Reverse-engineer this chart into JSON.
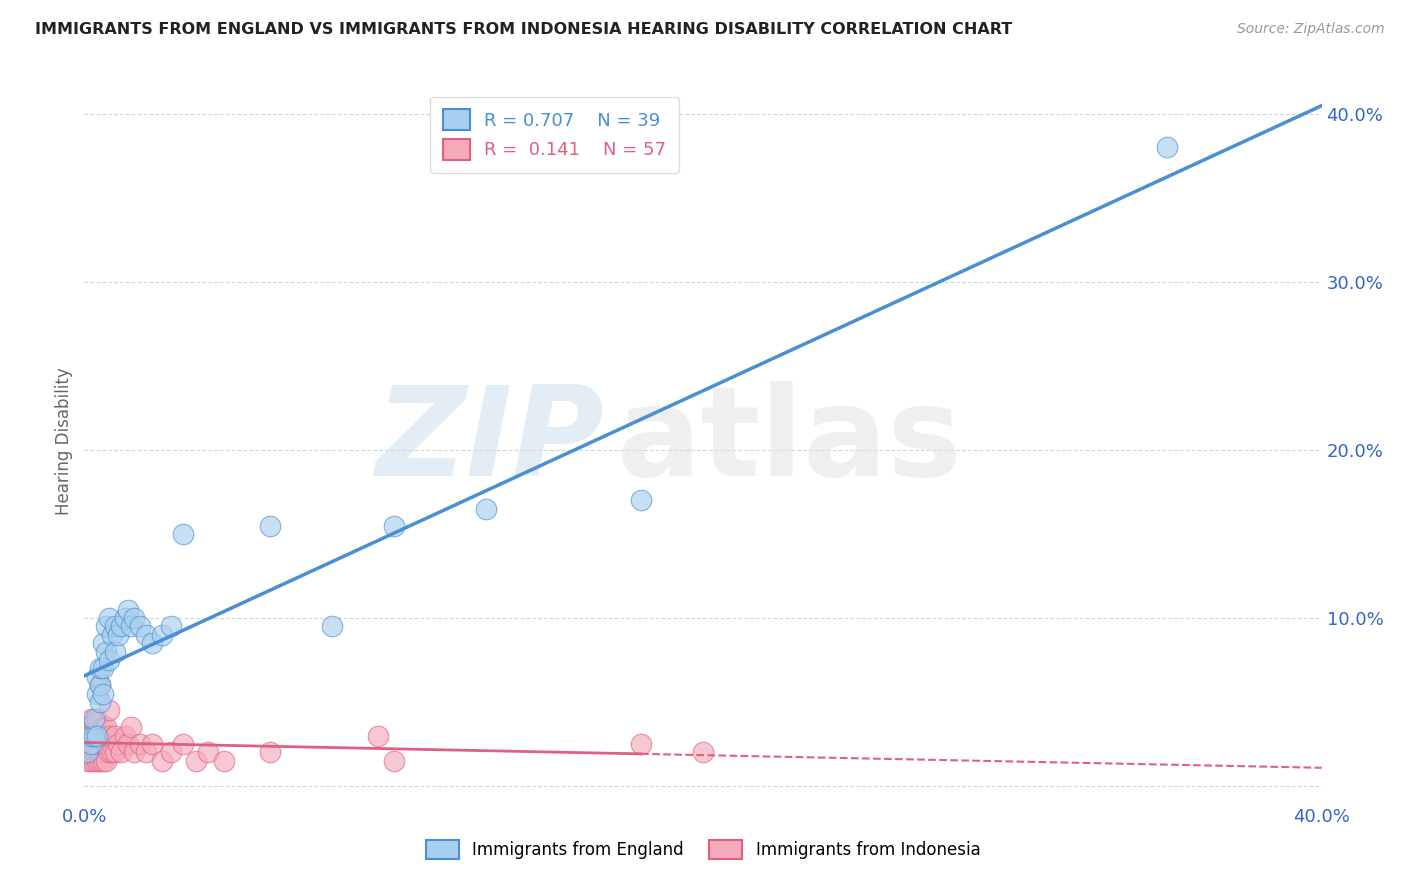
{
  "title": "IMMIGRANTS FROM ENGLAND VS IMMIGRANTS FROM INDONESIA HEARING DISABILITY CORRELATION CHART",
  "source": "Source: ZipAtlas.com",
  "ylabel": "Hearing Disability",
  "xlim": [
    0.0,
    0.4
  ],
  "ylim": [
    -0.01,
    0.42
  ],
  "england_color": "#A8CFEE",
  "indonesia_color": "#F4AABB",
  "england_line_color": "#4A8FD4",
  "indonesia_line_color": "#E06080",
  "england_R": 0.707,
  "england_N": 39,
  "indonesia_R": 0.141,
  "indonesia_N": 57,
  "background_color": "#ffffff",
  "grid_color": "#cccccc",
  "england_x": [
    0.001,
    0.002,
    0.002,
    0.003,
    0.003,
    0.004,
    0.004,
    0.004,
    0.005,
    0.005,
    0.005,
    0.006,
    0.006,
    0.006,
    0.007,
    0.007,
    0.008,
    0.008,
    0.009,
    0.01,
    0.01,
    0.011,
    0.012,
    0.013,
    0.014,
    0.015,
    0.016,
    0.018,
    0.02,
    0.022,
    0.025,
    0.028,
    0.032,
    0.06,
    0.08,
    0.1,
    0.13,
    0.18,
    0.35
  ],
  "england_y": [
    0.02,
    0.025,
    0.03,
    0.03,
    0.04,
    0.03,
    0.055,
    0.065,
    0.05,
    0.06,
    0.07,
    0.055,
    0.07,
    0.085,
    0.08,
    0.095,
    0.075,
    0.1,
    0.09,
    0.08,
    0.095,
    0.09,
    0.095,
    0.1,
    0.105,
    0.095,
    0.1,
    0.095,
    0.09,
    0.085,
    0.09,
    0.095,
    0.15,
    0.155,
    0.095,
    0.155,
    0.165,
    0.17,
    0.38
  ],
  "indonesia_x": [
    0.001,
    0.001,
    0.001,
    0.001,
    0.001,
    0.002,
    0.002,
    0.002,
    0.002,
    0.002,
    0.002,
    0.003,
    0.003,
    0.003,
    0.003,
    0.003,
    0.004,
    0.004,
    0.004,
    0.004,
    0.004,
    0.005,
    0.005,
    0.005,
    0.005,
    0.006,
    0.006,
    0.006,
    0.007,
    0.007,
    0.007,
    0.008,
    0.008,
    0.008,
    0.009,
    0.01,
    0.01,
    0.011,
    0.012,
    0.013,
    0.014,
    0.015,
    0.016,
    0.018,
    0.02,
    0.022,
    0.025,
    0.028,
    0.032,
    0.036,
    0.04,
    0.045,
    0.06,
    0.095,
    0.1,
    0.18,
    0.2
  ],
  "indonesia_y": [
    0.015,
    0.02,
    0.025,
    0.03,
    0.035,
    0.015,
    0.02,
    0.025,
    0.03,
    0.035,
    0.04,
    0.015,
    0.02,
    0.025,
    0.03,
    0.038,
    0.015,
    0.02,
    0.025,
    0.03,
    0.04,
    0.015,
    0.02,
    0.03,
    0.06,
    0.015,
    0.025,
    0.035,
    0.015,
    0.025,
    0.035,
    0.02,
    0.03,
    0.045,
    0.02,
    0.02,
    0.03,
    0.025,
    0.02,
    0.03,
    0.025,
    0.035,
    0.02,
    0.025,
    0.02,
    0.025,
    0.015,
    0.02,
    0.025,
    0.015,
    0.02,
    0.015,
    0.02,
    0.03,
    0.015,
    0.025,
    0.02
  ]
}
